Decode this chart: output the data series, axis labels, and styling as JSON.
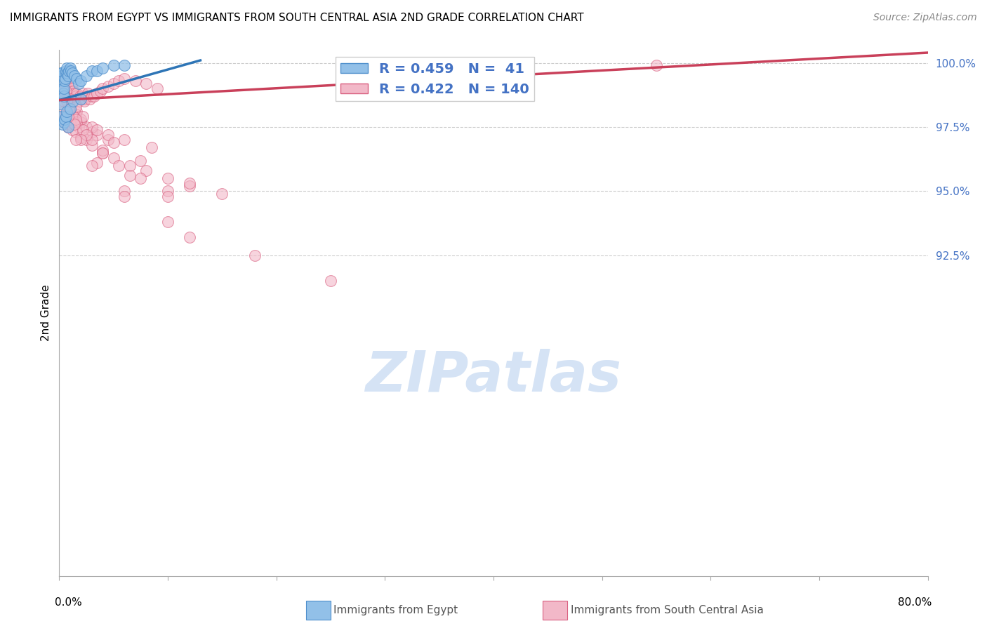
{
  "title": "IMMIGRANTS FROM EGYPT VS IMMIGRANTS FROM SOUTH CENTRAL ASIA 2ND GRADE CORRELATION CHART",
  "source": "Source: ZipAtlas.com",
  "ylabel_label": "2nd Grade",
  "xlabel_bottom_left": "0.0%",
  "xlabel_bottom_right": "80.0%",
  "legend_egypt": "Immigrants from Egypt",
  "legend_sca": "Immigrants from South Central Asia",
  "xmin": 0.0,
  "xmax": 80.0,
  "ymin": 80.0,
  "ymax": 100.5,
  "ytick_positions": [
    92.5,
    95.0,
    97.5,
    100.0
  ],
  "ytick_labels": [
    "92.5%",
    "95.0%",
    "97.5%",
    "100.0%"
  ],
  "egypt_color": "#92C0E8",
  "egypt_edge_color": "#4F8FCC",
  "sca_color": "#F2B8C8",
  "sca_edge_color": "#D96080",
  "egypt_line_color": "#2E75B6",
  "sca_line_color": "#C9405A",
  "legend_box_color_egypt": "#92C0E8",
  "legend_box_color_sca": "#F2B8C8",
  "legend_edge_egypt": "#4F8FCC",
  "legend_edge_sca": "#D96080",
  "R_egypt": 0.459,
  "N_egypt": 41,
  "R_sca": 0.422,
  "N_sca": 140,
  "watermark": "ZIPatlas",
  "watermark_color": "#D5E3F5",
  "egypt_line_x0": 0.0,
  "egypt_line_y0": 98.55,
  "egypt_line_x1": 13.0,
  "egypt_line_y1": 100.1,
  "sca_line_x0": 0.0,
  "sca_line_y0": 98.55,
  "sca_line_x1": 80.0,
  "sca_line_y1": 100.4,
  "egypt_x": [
    0.15,
    0.18,
    0.2,
    0.22,
    0.25,
    0.28,
    0.3,
    0.35,
    0.4,
    0.45,
    0.5,
    0.55,
    0.6,
    0.65,
    0.7,
    0.75,
    0.8,
    0.9,
    1.0,
    1.1,
    1.2,
    1.4,
    1.6,
    1.8,
    2.0,
    2.5,
    3.0,
    3.5,
    4.0,
    5.0,
    6.0,
    0.2,
    0.3,
    0.4,
    0.5,
    0.6,
    0.7,
    0.8,
    1.0,
    1.3,
    2.0
  ],
  "egypt_y": [
    98.4,
    99.5,
    99.6,
    99.5,
    99.6,
    99.3,
    99.0,
    98.8,
    98.7,
    99.0,
    99.3,
    99.4,
    99.6,
    99.7,
    99.8,
    99.6,
    99.5,
    99.7,
    99.8,
    99.7,
    99.6,
    99.5,
    99.4,
    99.2,
    99.3,
    99.5,
    99.7,
    99.7,
    99.8,
    99.9,
    99.9,
    97.9,
    97.6,
    97.7,
    97.8,
    97.9,
    98.1,
    97.5,
    98.2,
    98.5,
    98.6
  ],
  "sca_x": [
    0.1,
    0.15,
    0.2,
    0.25,
    0.3,
    0.35,
    0.4,
    0.45,
    0.5,
    0.55,
    0.6,
    0.65,
    0.7,
    0.75,
    0.8,
    0.85,
    0.9,
    0.95,
    1.0,
    1.05,
    1.1,
    1.15,
    1.2,
    1.3,
    1.4,
    1.5,
    1.6,
    1.7,
    1.8,
    1.9,
    2.0,
    2.1,
    2.2,
    2.3,
    2.4,
    2.5,
    2.6,
    2.8,
    3.0,
    3.2,
    3.5,
    3.8,
    4.0,
    4.5,
    5.0,
    5.5,
    6.0,
    7.0,
    8.0,
    9.0,
    0.2,
    0.3,
    0.4,
    0.5,
    0.6,
    0.7,
    0.8,
    0.9,
    1.0,
    1.1,
    1.2,
    1.4,
    1.6,
    1.8,
    2.0,
    2.5,
    3.0,
    3.5,
    4.5,
    0.2,
    0.3,
    0.4,
    0.5,
    0.6,
    0.8,
    1.0,
    1.2,
    1.5,
    2.0,
    2.5,
    3.0,
    4.0,
    5.0,
    6.5,
    8.0,
    10.0,
    12.0,
    15.0,
    0.2,
    0.4,
    0.6,
    0.8,
    1.0,
    1.5,
    2.0,
    3.0,
    4.5,
    6.0,
    8.5,
    0.3,
    0.5,
    0.7,
    0.9,
    1.2,
    1.6,
    2.2,
    3.0,
    4.0,
    5.5,
    7.5,
    10.0,
    0.3,
    0.6,
    1.0,
    1.5,
    2.2,
    3.5,
    5.0,
    7.5,
    12.0,
    0.4,
    0.7,
    1.0,
    1.5,
    2.5,
    4.0,
    6.5,
    10.0,
    0.5,
    0.9,
    1.4,
    2.0,
    3.5,
    6.0,
    10.0,
    18.0,
    0.4,
    0.8,
    1.5,
    3.0,
    6.0,
    12.0,
    25.0,
    55.0
  ],
  "sca_y": [
    99.0,
    99.2,
    99.3,
    99.4,
    99.1,
    99.0,
    98.9,
    98.8,
    99.2,
    99.3,
    99.1,
    99.0,
    99.0,
    99.1,
    98.8,
    98.9,
    98.8,
    98.7,
    98.7,
    98.9,
    98.8,
    98.8,
    99.0,
    98.9,
    98.8,
    98.7,
    98.8,
    98.6,
    98.5,
    98.7,
    98.6,
    98.7,
    98.8,
    98.5,
    98.6,
    98.7,
    98.8,
    98.6,
    98.7,
    98.7,
    98.8,
    98.9,
    99.0,
    99.1,
    99.2,
    99.3,
    99.4,
    99.3,
    99.2,
    99.0,
    98.0,
    97.8,
    97.9,
    97.7,
    97.8,
    98.0,
    97.5,
    97.6,
    97.7,
    97.8,
    98.0,
    97.9,
    98.1,
    97.5,
    97.7,
    97.5,
    97.3,
    97.2,
    97.0,
    98.3,
    98.1,
    97.9,
    97.8,
    97.7,
    97.5,
    97.6,
    97.4,
    97.3,
    97.1,
    97.0,
    96.8,
    96.5,
    96.3,
    96.0,
    95.8,
    95.5,
    95.2,
    94.9,
    99.0,
    98.8,
    98.6,
    98.4,
    98.2,
    98.0,
    97.8,
    97.5,
    97.2,
    97.0,
    96.7,
    98.9,
    98.7,
    98.5,
    98.3,
    98.0,
    97.7,
    97.4,
    97.0,
    96.6,
    96.0,
    95.5,
    95.0,
    99.1,
    98.9,
    98.6,
    98.3,
    97.9,
    97.4,
    96.9,
    96.2,
    95.3,
    98.9,
    98.5,
    98.2,
    97.8,
    97.2,
    96.5,
    95.6,
    94.8,
    98.7,
    98.2,
    97.6,
    97.0,
    96.1,
    95.0,
    93.8,
    92.5,
    98.5,
    97.9,
    97.0,
    96.0,
    94.8,
    93.2,
    91.5,
    99.9
  ]
}
